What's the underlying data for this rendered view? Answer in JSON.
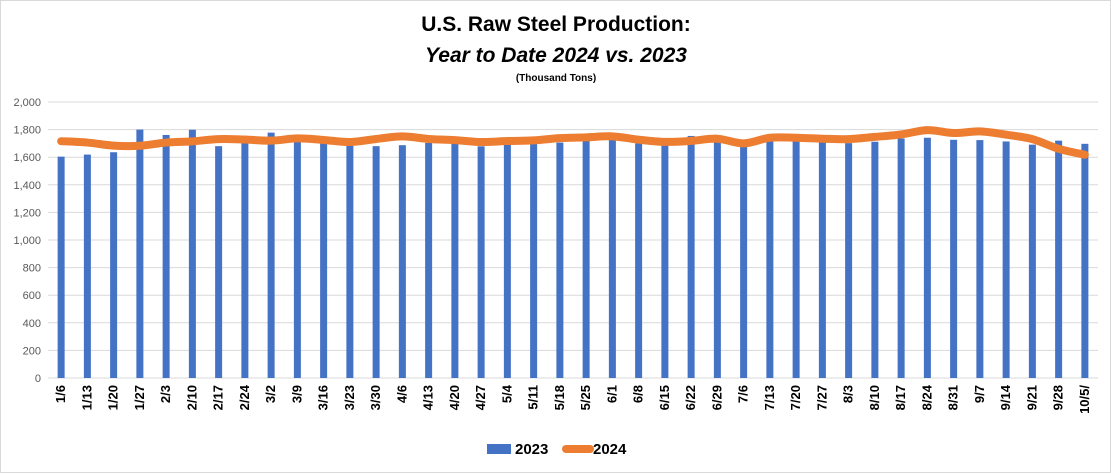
{
  "chart_data": {
    "type": "bar+line",
    "title": "U.S. Raw Steel Production:",
    "subtitle": "Year to Date 2024 vs. 2023",
    "units_note": "(Thousand Tons)",
    "xlabel": "",
    "ylabel": "",
    "ylim": [
      0,
      2000
    ],
    "ytick_step": 200,
    "grid": true,
    "legend_position": "bottom",
    "categories": [
      "1/6",
      "1/13",
      "1/20",
      "1/27",
      "2/3",
      "2/10",
      "2/17",
      "2/24",
      "3/2",
      "3/9",
      "3/16",
      "3/23",
      "3/30",
      "4/6",
      "4/13",
      "4/20",
      "4/27",
      "5/4",
      "5/11",
      "5/18",
      "5/25",
      "6/1",
      "6/8",
      "6/15",
      "6/22",
      "6/29",
      "7/6",
      "7/13",
      "7/20",
      "7/27",
      "8/3",
      "8/10",
      "8/17",
      "8/24",
      "8/31",
      "9/7",
      "9/14",
      "9/21",
      "9/28",
      "10/5/"
    ],
    "series": [
      {
        "name": "2023",
        "type": "bar",
        "color": "#4472c4",
        "values": [
          1604,
          1619,
          1636,
          1800,
          1761,
          1799,
          1680,
          1724,
          1778,
          1729,
          1707,
          1708,
          1680,
          1687,
          1703,
          1701,
          1679,
          1689,
          1698,
          1706,
          1732,
          1733,
          1700,
          1699,
          1754,
          1736,
          1680,
          1718,
          1733,
          1720,
          1702,
          1712,
          1736,
          1741,
          1726,
          1724,
          1714,
          1691,
          1720,
          1697
        ]
      },
      {
        "name": "2024",
        "type": "line",
        "color": "#ed7d31",
        "values": [
          1716,
          1706,
          1684,
          1683,
          1706,
          1715,
          1731,
          1728,
          1720,
          1736,
          1725,
          1710,
          1732,
          1751,
          1732,
          1724,
          1710,
          1717,
          1722,
          1738,
          1744,
          1751,
          1727,
          1711,
          1718,
          1734,
          1700,
          1741,
          1741,
          1734,
          1731,
          1747,
          1765,
          1796,
          1775,
          1787,
          1763,
          1731,
          1661,
          1618
        ]
      }
    ]
  }
}
